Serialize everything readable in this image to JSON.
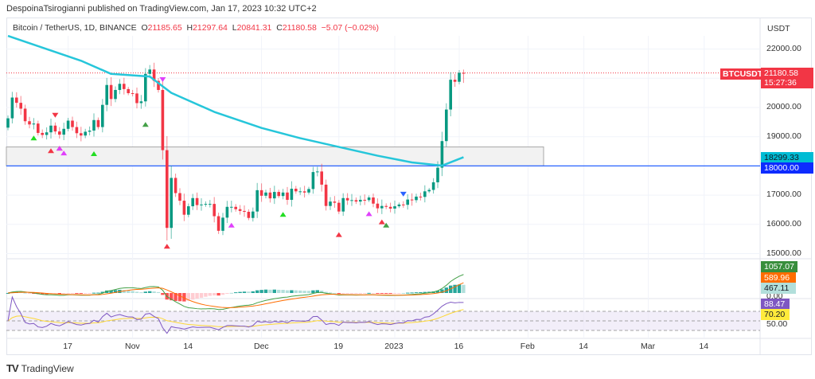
{
  "publisher_line": "DespoinaTsirogianni published on TradingView.com, Jan 17, 2023 10:32 UTC+2",
  "legend": {
    "symbol": "Bitcoin / TetherUS, 1D, BINANCE",
    "open_label": "O",
    "open": "21185.65",
    "high_label": "H",
    "high": "21297.64",
    "low_label": "L",
    "low": "20841.31",
    "close_label": "C",
    "close": "21180.58",
    "change": "−5.07 (−0.02%)"
  },
  "price_axis": {
    "currency": "USDT",
    "ticks": [
      "22000.00",
      "20000.00",
      "19000.00",
      "17000.00",
      "16000.00",
      "15000.00"
    ],
    "tick_values": [
      22000,
      20000,
      19000,
      17000,
      16000,
      15000
    ]
  },
  "labels": {
    "symbol_tag": "BTCUSDT",
    "last_price": "21180.58",
    "countdown": "15:27:36",
    "ema_value": "18299.33",
    "level_value": "18000.00",
    "macd_hist": "1057.07",
    "macd_signal": "589.96",
    "macd_line": "467.11",
    "rsi_value": "88.47",
    "rsi_ma": "70.20",
    "rsi_mid_partial": "50.00",
    "macd_zero_partial": "0.00"
  },
  "time_axis": [
    {
      "label": "17",
      "index": 14
    },
    {
      "label": "Nov",
      "index": 29
    },
    {
      "label": "14",
      "index": 42
    },
    {
      "label": "Dec",
      "index": 59
    },
    {
      "label": "19",
      "index": 77
    },
    {
      "label": "2023",
      "index": 90
    },
    {
      "label": "16",
      "index": 105
    },
    {
      "label": "Feb",
      "index": 121
    },
    {
      "label": "14",
      "index": 134
    },
    {
      "label": "Mar",
      "index": 149
    },
    {
      "label": "14",
      "index": 162
    }
  ],
  "footer": {
    "brand": "TradingView"
  },
  "colors": {
    "up": "#089981",
    "down": "#f23645",
    "ema": "#26c6da",
    "level": "#2962ff",
    "zone": "#f2f2f2",
    "rsi": "#7e57c2",
    "rsi_ma": "#fdd835"
  },
  "chart_data": {
    "type": "candlestick",
    "title": "Bitcoin / TetherUS, 1D, BINANCE",
    "first_date": "2022-10-03",
    "last_date": "2023-01-17",
    "ylim": [
      14800,
      22500
    ],
    "first_open": 19310,
    "close": [
      19630,
      20340,
      20160,
      19960,
      19530,
      19420,
      19450,
      19130,
      19060,
      19150,
      19380,
      19180,
      19070,
      19270,
      19550,
      19330,
      19120,
      19040,
      19170,
      19210,
      19570,
      19330,
      20090,
      20770,
      20290,
      20600,
      20810,
      20630,
      20490,
      20480,
      20150,
      20210,
      21150,
      21300,
      20910,
      20600,
      18540,
      15880,
      17590,
      17070,
      16810,
      16330,
      16620,
      16900,
      16660,
      16680,
      16700,
      16700,
      16280,
      15780,
      16230,
      16600,
      16600,
      16520,
      16460,
      16430,
      16220,
      16440,
      17170,
      16980,
      17090,
      16890,
      17110,
      16970,
      17090,
      16840,
      17220,
      17130,
      17130,
      17090,
      17210,
      17790,
      17810,
      17360,
      16630,
      16780,
      16740,
      16440,
      16900,
      16820,
      16830,
      16780,
      16840,
      16830,
      16920,
      16710,
      16550,
      16630,
      16600,
      16540,
      16620,
      16680,
      16670,
      16850,
      16830,
      16950,
      16940,
      17130,
      17180,
      17440,
      17940,
      18850,
      19930,
      20950,
      20880,
      21185.65,
      21180.58
    ],
    "last_candle": {
      "open": 21185.65,
      "high": 21297.64,
      "low": 20841.31,
      "close": 21180.58
    },
    "ema": {
      "dates_index": [
        0,
        17,
        24,
        33,
        38,
        48,
        59,
        68,
        77,
        86,
        94,
        101,
        106
      ],
      "values": [
        22450,
        21600,
        21150,
        21060,
        20500,
        19850,
        19300,
        18950,
        18650,
        18350,
        18120,
        18010,
        18299.33
      ]
    },
    "horizontal_level": 18000,
    "zone": [
      18000,
      18650
    ],
    "markers": [
      {
        "index": 6,
        "dir": "up",
        "color": "#22dd22"
      },
      {
        "index": 10,
        "dir": "up",
        "color": "#f23645"
      },
      {
        "index": 11,
        "dir": "down",
        "color": "#f23645"
      },
      {
        "index": 12,
        "dir": "up",
        "color": "#f23645"
      },
      {
        "index": 12,
        "dir": "up",
        "color": "#e040fb"
      },
      {
        "index": 13,
        "dir": "up",
        "color": "#e040fb"
      },
      {
        "index": 20,
        "dir": "up",
        "color": "#22dd22"
      },
      {
        "index": 32,
        "dir": "up",
        "color": "#43a047"
      },
      {
        "index": 36,
        "dir": "down",
        "color": "#e040fb"
      },
      {
        "index": 37,
        "dir": "up",
        "color": "#f23645"
      },
      {
        "index": 52,
        "dir": "up",
        "color": "#e040fb"
      },
      {
        "index": 64,
        "dir": "up",
        "color": "#22dd22"
      },
      {
        "index": 77,
        "dir": "up",
        "color": "#f23645"
      },
      {
        "index": 84,
        "dir": "up",
        "color": "#e040fb"
      },
      {
        "index": 87,
        "dir": "up",
        "color": "#f23645"
      },
      {
        "index": 88,
        "dir": "up",
        "color": "#43a047"
      },
      {
        "index": 92,
        "dir": "down",
        "color": "#2962ff"
      }
    ]
  }
}
